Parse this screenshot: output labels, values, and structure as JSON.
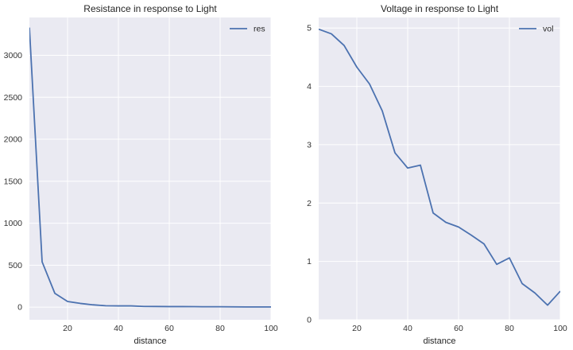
{
  "colors": {
    "background": "#eaeaf2",
    "grid": "#ffffff",
    "line": "#4c72b0",
    "text": "#262626",
    "tick_text": "#333333"
  },
  "chart_data": [
    {
      "type": "line",
      "title": "Resistance in response to Light",
      "xlabel": "distance",
      "ylabel": "",
      "xlim": [
        5,
        100
      ],
      "ylim": [
        -150,
        3450
      ],
      "xticks": [
        20,
        40,
        60,
        80,
        100
      ],
      "yticks": [
        0,
        500,
        1000,
        1500,
        2000,
        2500,
        3000
      ],
      "grid": true,
      "legend": "top-right",
      "series": [
        {
          "name": "res",
          "x": [
            5,
            10,
            15,
            20,
            25,
            30,
            35,
            40,
            45,
            50,
            55,
            60,
            65,
            70,
            75,
            80,
            85,
            90,
            95,
            100
          ],
          "y": [
            3330,
            540,
            165,
            68,
            45,
            28,
            17,
            15,
            15,
            9,
            8,
            7,
            7,
            6,
            5,
            5,
            4,
            3,
            3,
            3
          ]
        }
      ]
    },
    {
      "type": "line",
      "title": "Voltage in response to Light",
      "xlabel": "distance",
      "ylabel": "",
      "xlim": [
        5,
        100
      ],
      "ylim": [
        0,
        5.18
      ],
      "xticks": [
        20,
        40,
        60,
        80,
        100
      ],
      "yticks": [
        0,
        1,
        2,
        3,
        4,
        5
      ],
      "grid": true,
      "legend": "top-right",
      "series": [
        {
          "name": "vol",
          "x": [
            5,
            10,
            15,
            20,
            25,
            30,
            35,
            40,
            45,
            50,
            55,
            60,
            65,
            70,
            75,
            80,
            85,
            90,
            95,
            100
          ],
          "y": [
            4.98,
            4.9,
            4.7,
            4.33,
            4.04,
            3.58,
            2.86,
            2.6,
            2.65,
            1.83,
            1.67,
            1.59,
            1.45,
            1.3,
            0.95,
            1.06,
            0.62,
            0.46,
            0.25,
            0.49
          ]
        }
      ]
    }
  ]
}
